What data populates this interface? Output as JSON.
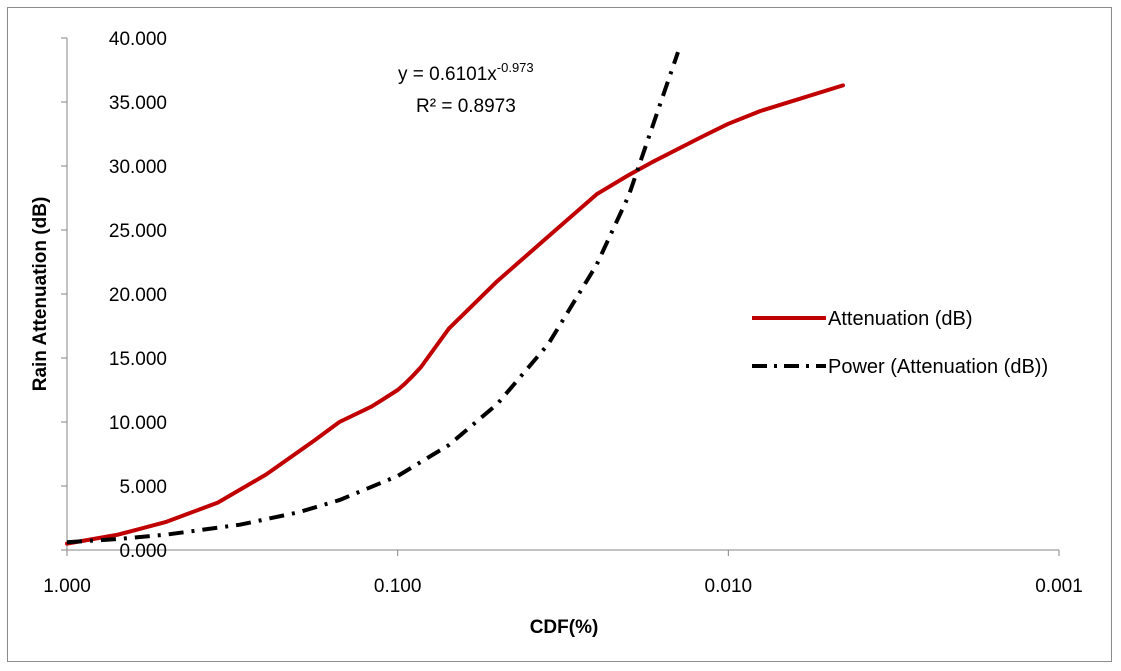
{
  "chart_data": {
    "type": "line",
    "xlabel": "CDF(%)",
    "ylabel": "Rain Attenuation (dB)",
    "x_scale": "log",
    "x_reversed": true,
    "xlim": [
      1.0,
      0.001
    ],
    "ylim": [
      0,
      40
    ],
    "x_ticks": [
      1.0,
      0.1,
      0.01,
      0.001
    ],
    "x_tick_labels": [
      "1.000",
      "0.100",
      "0.010",
      "0.001"
    ],
    "y_ticks": [
      0,
      5,
      10,
      15,
      20,
      25,
      30,
      35,
      40
    ],
    "y_tick_labels": [
      "0.000",
      "5.000",
      "10.000",
      "15.000",
      "20.000",
      "25.000",
      "30.000",
      "35.000",
      "40.000"
    ],
    "grid": false,
    "legend_position": "right",
    "series": [
      {
        "name": "Attenuation (dB)",
        "color": "#c00000",
        "style": "solid",
        "x": [
          1.0,
          0.7,
          0.5,
          0.35,
          0.25,
          0.18,
          0.15,
          0.12,
          0.1,
          0.095,
          0.09,
          0.085,
          0.07,
          0.05,
          0.035,
          0.025,
          0.02,
          0.017,
          0.012,
          0.01,
          0.008,
          0.006,
          0.0045
        ],
        "y": [
          0.5,
          1.2,
          2.2,
          3.7,
          5.9,
          8.5,
          10.0,
          11.2,
          12.5,
          13.0,
          13.6,
          14.3,
          17.3,
          21.0,
          24.5,
          27.8,
          29.3,
          30.3,
          32.3,
          33.3,
          34.3,
          35.3,
          36.3
        ]
      },
      {
        "name": "Power (Attenuation (dB))",
        "color": "#000000",
        "style": "dash-dot",
        "equation": "y = 0.6101x",
        "equation_exponent": "-0.973",
        "r_squared": "R² = 0.8973",
        "x": [
          1.0,
          0.7,
          0.5,
          0.3,
          0.2,
          0.15,
          0.1,
          0.07,
          0.05,
          0.035,
          0.025,
          0.02,
          0.0142
        ],
        "y": [
          0.61,
          0.86,
          1.2,
          1.98,
          2.94,
          3.9,
          5.78,
          8.2,
          11.4,
          16.1,
          22.3,
          27.7,
          38.9
        ]
      }
    ]
  }
}
